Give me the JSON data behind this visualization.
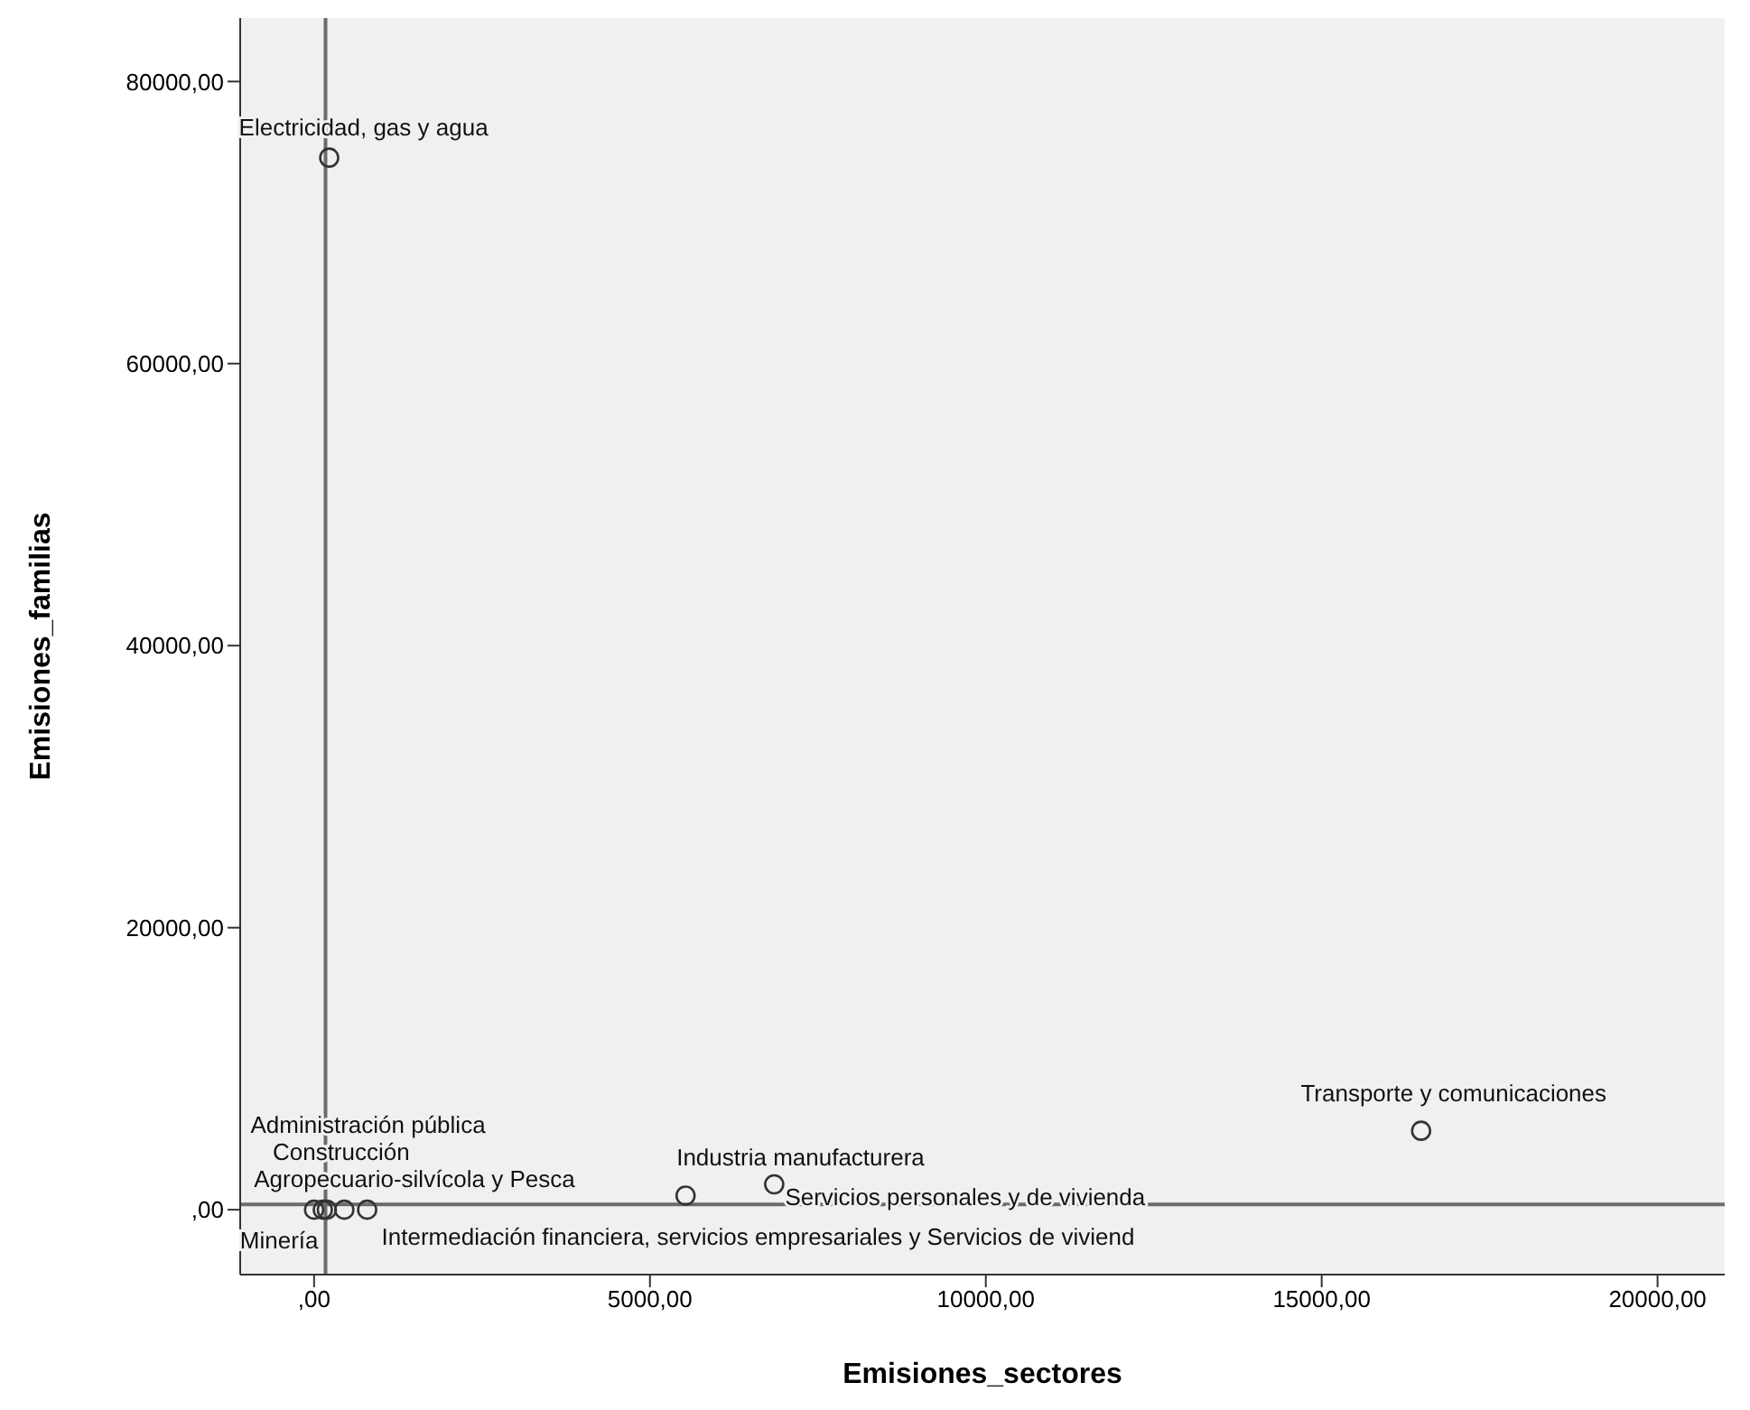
{
  "chart_data": {
    "type": "scatter",
    "xlabel": "Emisiones_sectores",
    "ylabel": "Emisiones_familias",
    "x": [
      225,
      16480,
      5530,
      6850,
      0,
      130,
      190,
      450,
      790
    ],
    "series": [
      {
        "color": "#333333",
        "values": [
          74600,
          5600,
          1000,
          1800,
          0,
          0,
          0,
          0,
          0
        ],
        "value_labels": [
          "Electricidad, gas y agua",
          "Transporte y comunicaciones",
          "Industria manufacturera",
          "Servicios personales y de vivienda",
          "Minería",
          "Administración pública",
          "Construcción",
          "Agropecuario-silvícola y Pesca",
          "Intermediación financiera, servicios empresariales y Servicios de viviend"
        ]
      }
    ],
    "xlim": [
      -1100,
      21000
    ],
    "ylim": [
      -4600,
      84500
    ],
    "xticks": [
      {
        "value": 0,
        "label": ",00"
      },
      {
        "value": 5000,
        "label": "5000,00"
      },
      {
        "value": 10000,
        "label": "10000,00"
      },
      {
        "value": 15000,
        "label": "15000,00"
      },
      {
        "value": 20000,
        "label": "20000,00"
      }
    ],
    "yticks": [
      {
        "value": 0,
        "label": ",00"
      },
      {
        "value": 20000,
        "label": "20000,00"
      },
      {
        "value": 40000,
        "label": "40000,00"
      },
      {
        "value": 60000,
        "label": "60000,00"
      },
      {
        "value": 80000,
        "label": "80000,00"
      }
    ],
    "ref_lines": [
      {
        "axis": "x",
        "value": 170,
        "color": "#6b6b6b"
      },
      {
        "axis": "y",
        "value": 380,
        "color": "#6b6b6b"
      }
    ],
    "marker": "circle",
    "grid": false,
    "legend": false
  }
}
